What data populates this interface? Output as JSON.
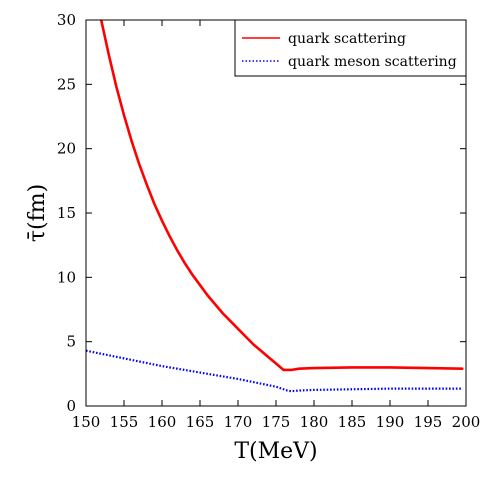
{
  "chart_data": {
    "type": "line",
    "title": "",
    "xlabel": "T(MeV)",
    "ylabel": "τ̄(fm)",
    "xlim": [
      150,
      200
    ],
    "ylim": [
      0,
      30
    ],
    "x_ticks": [
      "150",
      "155",
      "160",
      "165",
      "170",
      "175",
      "180",
      "185",
      "190",
      "195",
      "200"
    ],
    "y_ticks": [
      "0",
      "5",
      "10",
      "15",
      "20",
      "25",
      "30"
    ],
    "grid": false,
    "legend_position": "top-right",
    "series": [
      {
        "name": "quark scattering",
        "color": "#ff0000",
        "style": "solid",
        "points": [
          [
            152,
            30.0
          ],
          [
            153,
            27.3
          ],
          [
            154,
            24.8
          ],
          [
            155,
            22.6
          ],
          [
            156,
            20.6
          ],
          [
            157,
            18.8
          ],
          [
            158,
            17.2
          ],
          [
            159,
            15.7
          ],
          [
            160,
            14.4
          ],
          [
            161,
            13.2
          ],
          [
            162,
            12.1
          ],
          [
            163,
            11.1
          ],
          [
            164,
            10.2
          ],
          [
            165,
            9.4
          ],
          [
            166,
            8.6
          ],
          [
            167,
            7.9
          ],
          [
            168,
            7.2
          ],
          [
            169,
            6.6
          ],
          [
            170,
            6.0
          ],
          [
            171,
            5.4
          ],
          [
            172,
            4.8
          ],
          [
            173,
            4.3
          ],
          [
            174,
            3.8
          ],
          [
            175,
            3.3
          ],
          [
            176,
            2.8
          ],
          [
            177,
            2.8
          ],
          [
            178,
            2.9
          ],
          [
            180,
            2.95
          ],
          [
            185,
            3.0
          ],
          [
            190,
            3.0
          ],
          [
            195,
            2.95
          ],
          [
            199.5,
            2.9
          ]
        ]
      },
      {
        "name": "quark meson scattering",
        "color": "#0000ff",
        "style": "dotted",
        "points": [
          [
            150,
            4.3
          ],
          [
            155,
            3.7
          ],
          [
            160,
            3.1
          ],
          [
            165,
            2.6
          ],
          [
            170,
            2.1
          ],
          [
            175,
            1.5
          ],
          [
            176.5,
            1.2
          ],
          [
            177,
            1.15
          ],
          [
            178,
            1.2
          ],
          [
            180,
            1.25
          ],
          [
            185,
            1.3
          ],
          [
            190,
            1.35
          ],
          [
            195,
            1.35
          ],
          [
            199.5,
            1.35
          ]
        ]
      }
    ]
  }
}
